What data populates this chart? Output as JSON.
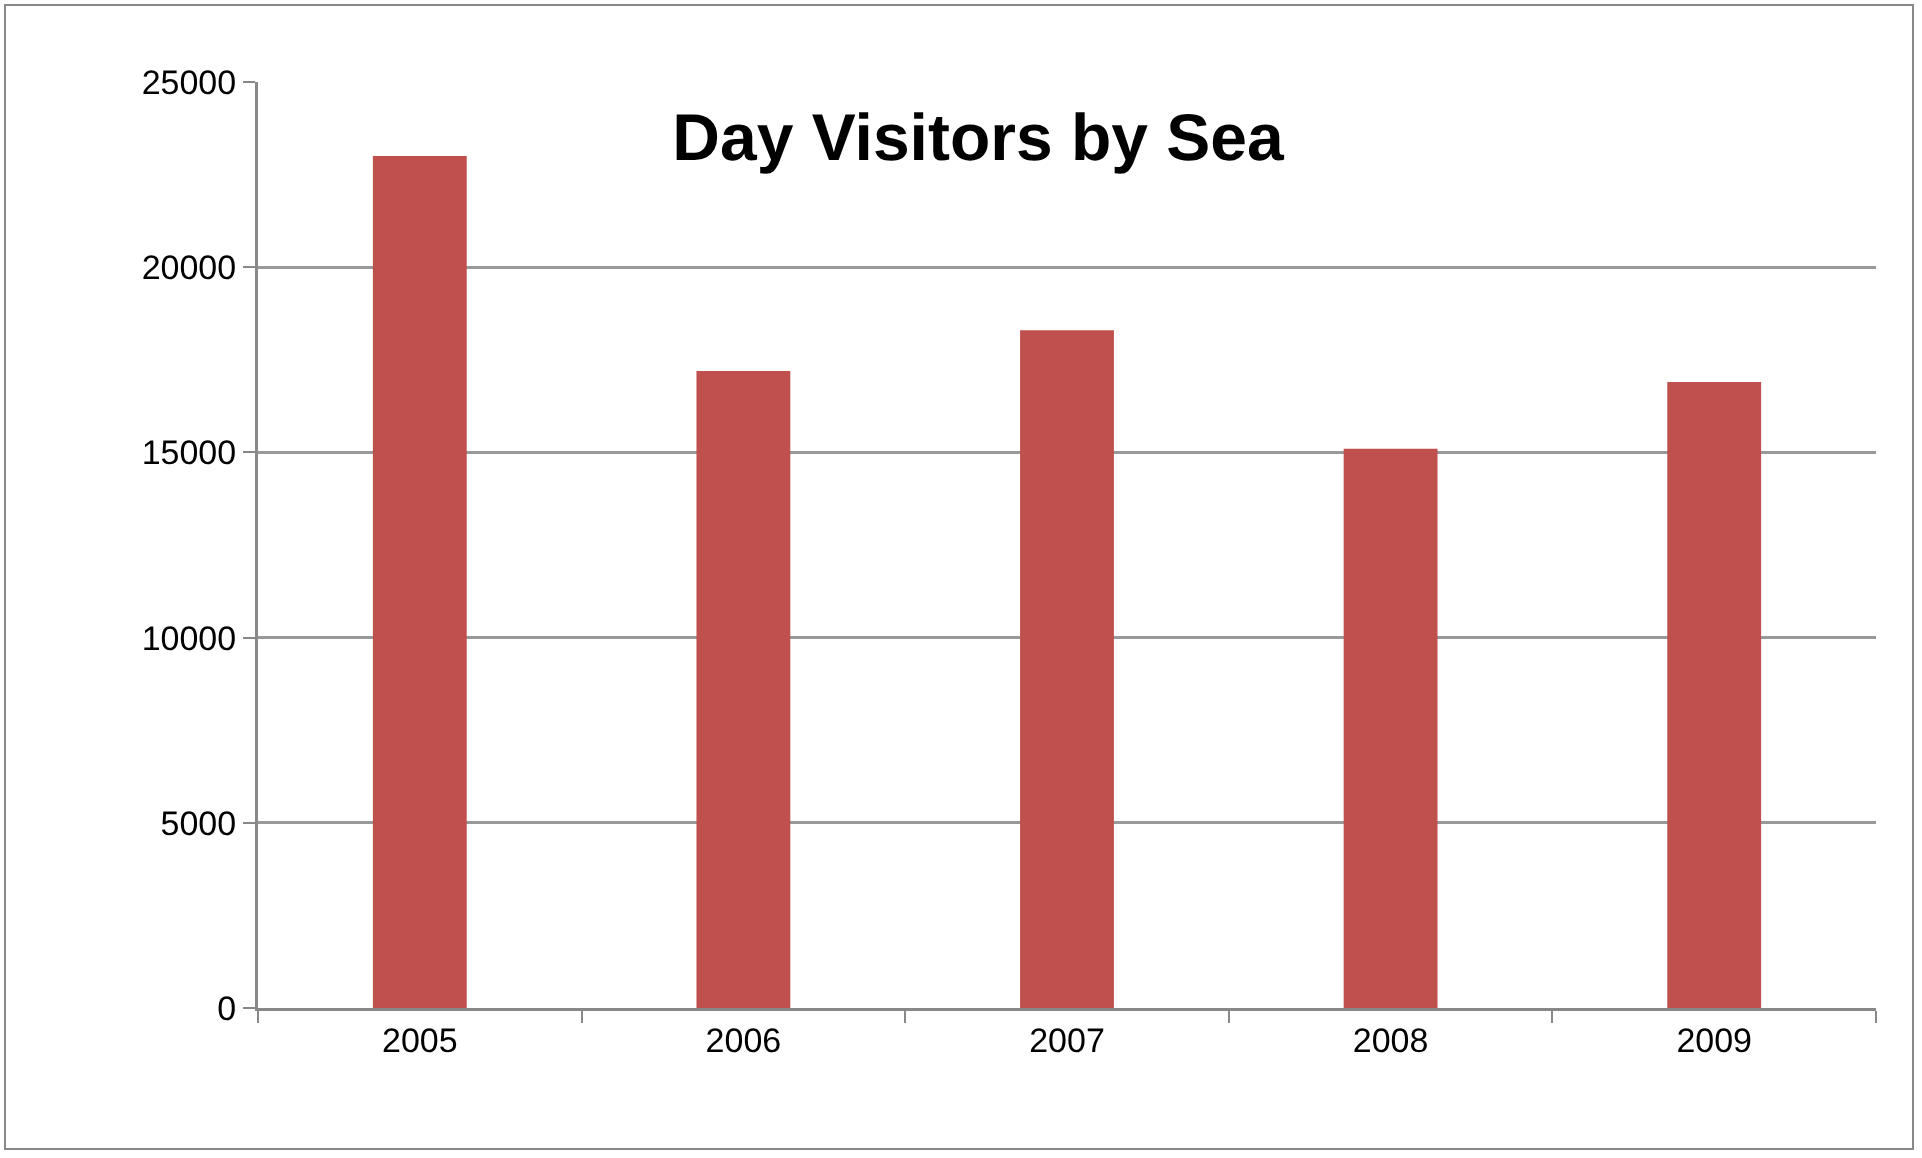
{
  "chart_data": {
    "type": "bar",
    "title": "Day Visitors by Sea",
    "categories": [
      "2005",
      "2006",
      "2007",
      "2008",
      "2009"
    ],
    "values": [
      23000,
      17200,
      18300,
      15100,
      16900
    ],
    "color": "#c0504d",
    "ylim": [
      0,
      25000
    ],
    "yticks": [
      0,
      5000,
      10000,
      15000,
      20000,
      25000
    ],
    "grid": "y"
  }
}
